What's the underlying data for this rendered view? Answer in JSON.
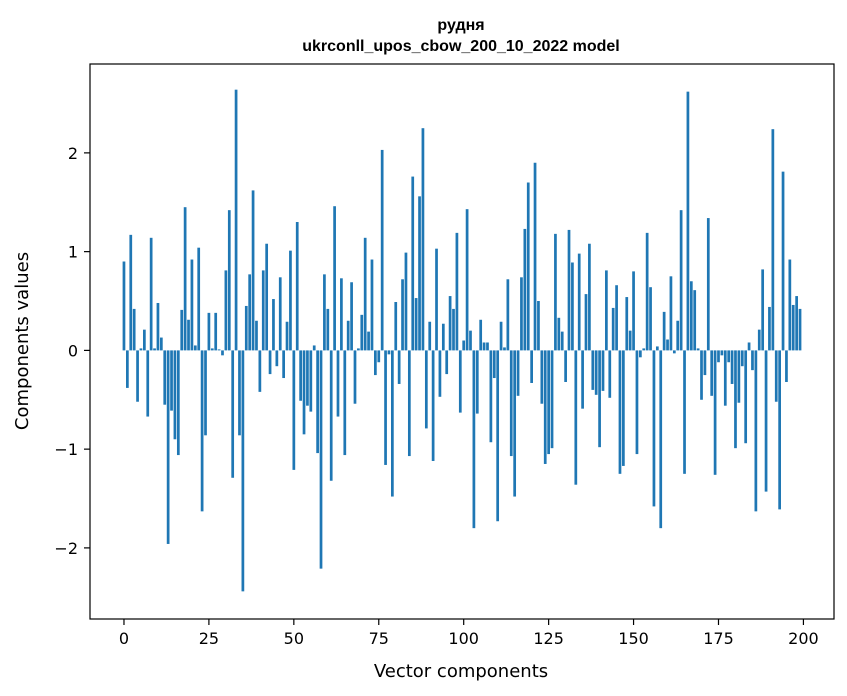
{
  "chart_data": {
    "type": "bar",
    "title": "рудня",
    "subtitle": "ukrconll_upos_cbow_200_10_2022 model",
    "xlabel": "Vector components",
    "ylabel": "Components values",
    "xlim": [
      -10,
      209
    ],
    "ylim": [
      -2.72,
      2.9
    ],
    "xticks": [
      0,
      25,
      50,
      75,
      100,
      125,
      150,
      175,
      200
    ],
    "yticks": [
      -2,
      -1,
      0,
      1,
      2
    ],
    "bar_color": "#1f77b4",
    "values": [
      0.9,
      -0.38,
      1.17,
      0.42,
      -0.52,
      0.02,
      0.21,
      -0.67,
      1.14,
      0.02,
      0.48,
      0.13,
      -0.55,
      -1.96,
      -0.61,
      -0.9,
      -1.06,
      0.41,
      1.45,
      0.31,
      0.92,
      0.05,
      1.04,
      -1.63,
      -0.86,
      0.38,
      0.02,
      0.38,
      0.01,
      -0.05,
      0.81,
      1.42,
      -1.29,
      2.64,
      -0.86,
      -2.44,
      0.45,
      0.77,
      1.62,
      0.3,
      -0.42,
      0.81,
      1.08,
      -0.24,
      0.52,
      -0.16,
      0.74,
      -0.28,
      0.29,
      1.01,
      -1.21,
      1.3,
      -0.51,
      -0.85,
      -0.56,
      -0.62,
      0.05,
      -1.04,
      -2.21,
      0.77,
      0.42,
      -1.32,
      1.46,
      -0.67,
      0.73,
      -1.06,
      0.3,
      0.69,
      -0.54,
      0.02,
      0.36,
      1.14,
      0.19,
      0.92,
      -0.25,
      -0.12,
      2.03,
      -1.16,
      -0.04,
      -1.48,
      0.49,
      -0.34,
      0.72,
      0.99,
      -1.07,
      1.76,
      0.53,
      1.56,
      2.25,
      -0.79,
      0.29,
      -1.12,
      1.03,
      -0.47,
      0.27,
      -0.24,
      0.55,
      0.42,
      1.19,
      -0.63,
      0.1,
      1.43,
      0.2,
      -1.8,
      -0.64,
      0.31,
      0.08,
      0.08,
      -0.93,
      -0.28,
      -1.73,
      0.29,
      0.03,
      0.72,
      -1.07,
      -1.48,
      -0.46,
      0.74,
      1.23,
      1.7,
      -0.33,
      1.9,
      0.5,
      -0.54,
      -1.15,
      -1.05,
      -0.99,
      1.18,
      0.33,
      0.19,
      -0.32,
      1.22,
      0.89,
      -1.36,
      0.98,
      -0.59,
      0.57,
      1.08,
      -0.4,
      -0.45,
      -0.98,
      -0.41,
      0.81,
      -0.48,
      0.43,
      0.66,
      -1.25,
      -1.17,
      0.54,
      0.2,
      0.8,
      -1.05,
      -0.07,
      0.02,
      1.19,
      0.64,
      -1.58,
      0.04,
      -1.8,
      0.39,
      0.11,
      0.75,
      -0.03,
      0.3,
      1.42,
      -1.25,
      2.62,
      0.7,
      0.61,
      0.02,
      -0.5,
      -0.25,
      1.34,
      -0.46,
      -1.26,
      -0.12,
      -0.05,
      -0.56,
      -0.12,
      -0.34,
      -0.99,
      -0.53,
      -0.16,
      -0.94,
      0.08,
      -0.2,
      -1.63,
      0.21,
      0.82,
      -1.43,
      0.44,
      2.24,
      -0.52,
      -1.61,
      1.81,
      -0.32,
      0.92,
      0.46,
      0.55,
      0.42
    ]
  }
}
